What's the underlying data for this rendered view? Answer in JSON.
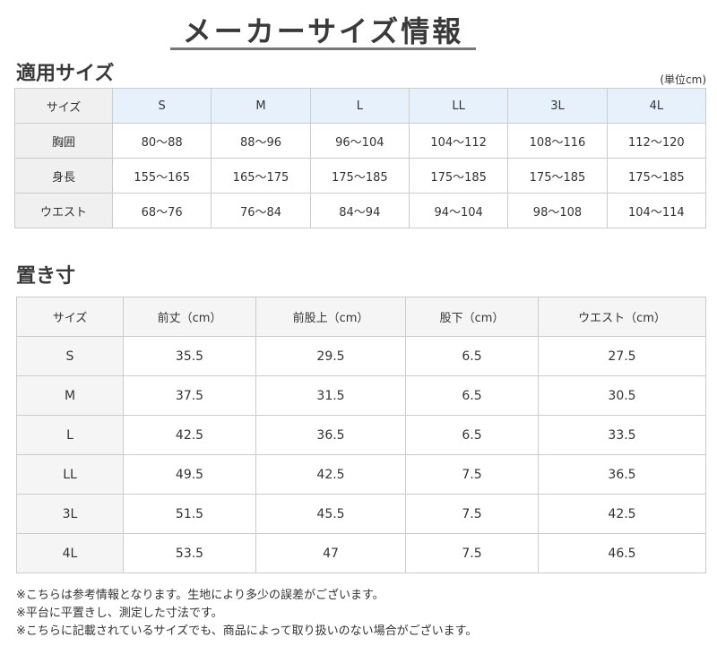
{
  "title": "メーカーサイズ情報",
  "section1": {
    "heading": "適用サイズ",
    "unit": "(単位cm)",
    "header": [
      "サイズ",
      "S",
      "M",
      "L",
      "LL",
      "3L",
      "4L"
    ],
    "rows": [
      [
        "胸囲",
        "80〜88",
        "88〜96",
        "96〜104",
        "104〜112",
        "108〜116",
        "112〜120"
      ],
      [
        "身長",
        "155〜165",
        "165〜175",
        "175〜185",
        "175〜185",
        "175〜185",
        "175〜185"
      ],
      [
        "ウエスト",
        "68〜76",
        "76〜84",
        "84〜94",
        "94〜104",
        "98〜108",
        "104〜114"
      ]
    ]
  },
  "section2": {
    "heading": "置き寸",
    "header": [
      "サイズ",
      "前丈（cm）",
      "前股上（cm）",
      "股下（cm）",
      "ウエスト（cm）"
    ],
    "rows": [
      [
        "S",
        "35.5",
        "29.5",
        "6.5",
        "27.5"
      ],
      [
        "M",
        "37.5",
        "31.5",
        "6.5",
        "30.5"
      ],
      [
        "L",
        "42.5",
        "36.5",
        "6.5",
        "33.5"
      ],
      [
        "LL",
        "49.5",
        "42.5",
        "7.5",
        "36.5"
      ],
      [
        "3L",
        "51.5",
        "45.5",
        "7.5",
        "42.5"
      ],
      [
        "4L",
        "53.5",
        "47",
        "7.5",
        "46.5"
      ]
    ]
  },
  "notes": [
    "※こちらは参考情報となります。生地により多少の誤差がございます。",
    "※平台に平置きし、測定した寸法です。",
    "※こちらに記載されているサイズでも、商品によって取り扱いのない場合がございます。"
  ],
  "colors": {
    "header_blue": "#e6f1fc",
    "header_gray": "#f0f0f0"
  }
}
